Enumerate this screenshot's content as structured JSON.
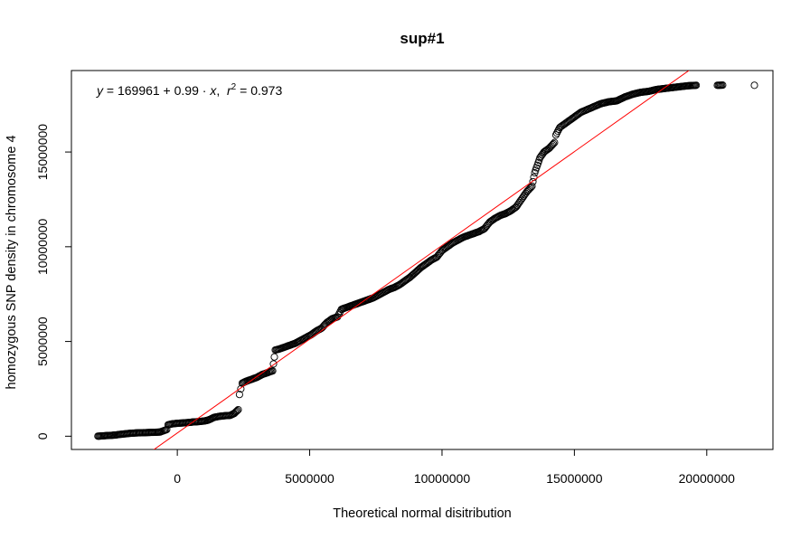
{
  "chart_data": {
    "type": "scatter",
    "title": "sup#1",
    "xlabel": "Theoretical normal disitribution",
    "ylabel": "homozygous SNP density in chromosome 4",
    "xlim": [
      -4000000,
      22500000
    ],
    "ylim": [
      -700000,
      19300000
    ],
    "x_ticks": [
      0,
      5000000,
      10000000,
      15000000,
      20000000
    ],
    "x_tick_labels": [
      "0",
      "5000000",
      "10000000",
      "15000000",
      "20000000"
    ],
    "y_ticks": [
      0,
      5000000,
      10000000,
      15000000
    ],
    "y_tick_labels": [
      "0",
      "5000000",
      "10000000",
      "15000000"
    ],
    "grid": false,
    "marker": "open-circle",
    "fit_line": {
      "intercept": 169961,
      "slope": 0.99,
      "r2": 0.973,
      "color": "#ff0000",
      "equation_label": {
        "y": "y",
        "eq1": " = 169961 + 0.99 · ",
        "x": "x",
        "comma": ",  ",
        "r": "r",
        "sup": "2",
        "eq2": " = 0.973"
      }
    },
    "series": [
      {
        "points": [
          [
            -3000000,
            0
          ],
          [
            -2700000,
            30000
          ],
          [
            -2450000,
            50000
          ],
          [
            -2350000,
            60000
          ],
          [
            -2200000,
            90000
          ],
          [
            -2000000,
            120000
          ],
          [
            -1800000,
            150000
          ],
          [
            -1600000,
            170000
          ],
          [
            -1400000,
            180000
          ],
          [
            -1200000,
            190000
          ],
          [
            -1000000,
            200000
          ],
          [
            -800000,
            210000
          ],
          [
            -650000,
            220000
          ],
          [
            -400000,
            350000
          ],
          [
            -350000,
            600000
          ],
          [
            -200000,
            650000
          ],
          [
            0,
            680000
          ],
          [
            200000,
            700000
          ],
          [
            400000,
            720000
          ],
          [
            600000,
            750000
          ],
          [
            800000,
            770000
          ],
          [
            1000000,
            800000
          ],
          [
            1150000,
            840000
          ],
          [
            1250000,
            900000
          ],
          [
            1400000,
            1000000
          ],
          [
            1600000,
            1050000
          ],
          [
            1800000,
            1080000
          ],
          [
            2000000,
            1100000
          ],
          [
            2150000,
            1200000
          ],
          [
            2300000,
            1400000
          ],
          [
            2350000,
            2200000
          ],
          [
            2400000,
            2500000
          ],
          [
            2450000,
            2800000
          ],
          [
            2600000,
            2900000
          ],
          [
            2800000,
            3000000
          ],
          [
            3000000,
            3100000
          ],
          [
            3200000,
            3250000
          ],
          [
            3400000,
            3350000
          ],
          [
            3600000,
            3450000
          ],
          [
            3700000,
            4550000
          ],
          [
            3850000,
            4600000
          ],
          [
            4050000,
            4700000
          ],
          [
            4250000,
            4800000
          ],
          [
            4450000,
            4900000
          ],
          [
            4650000,
            5050000
          ],
          [
            4850000,
            5200000
          ],
          [
            5050000,
            5350000
          ],
          [
            5250000,
            5550000
          ],
          [
            5450000,
            5700000
          ],
          [
            5650000,
            6000000
          ],
          [
            5850000,
            6200000
          ],
          [
            6050000,
            6300000
          ],
          [
            6200000,
            6700000
          ],
          [
            6400000,
            6800000
          ],
          [
            6600000,
            6900000
          ],
          [
            6800000,
            7000000
          ],
          [
            7000000,
            7100000
          ],
          [
            7200000,
            7200000
          ],
          [
            7400000,
            7300000
          ],
          [
            7600000,
            7450000
          ],
          [
            7800000,
            7600000
          ],
          [
            8000000,
            7750000
          ],
          [
            8200000,
            7850000
          ],
          [
            8400000,
            8000000
          ],
          [
            8600000,
            8200000
          ],
          [
            8800000,
            8400000
          ],
          [
            9000000,
            8650000
          ],
          [
            9200000,
            8900000
          ],
          [
            9400000,
            9100000
          ],
          [
            9600000,
            9300000
          ],
          [
            9800000,
            9450000
          ],
          [
            10000000,
            9800000
          ],
          [
            10200000,
            10000000
          ],
          [
            10400000,
            10200000
          ],
          [
            10600000,
            10350000
          ],
          [
            10800000,
            10500000
          ],
          [
            11000000,
            10600000
          ],
          [
            11200000,
            10700000
          ],
          [
            11400000,
            10800000
          ],
          [
            11600000,
            10950000
          ],
          [
            11800000,
            11300000
          ],
          [
            12000000,
            11500000
          ],
          [
            12200000,
            11650000
          ],
          [
            12400000,
            11750000
          ],
          [
            12600000,
            11900000
          ],
          [
            12800000,
            12100000
          ],
          [
            13000000,
            12500000
          ],
          [
            13200000,
            12900000
          ],
          [
            13400000,
            13200000
          ],
          [
            13500000,
            13900000
          ],
          [
            13600000,
            14300000
          ],
          [
            13700000,
            14700000
          ],
          [
            13850000,
            15000000
          ],
          [
            14050000,
            15200000
          ],
          [
            14250000,
            15500000
          ],
          [
            14300000,
            15900000
          ],
          [
            14450000,
            16300000
          ],
          [
            14650000,
            16500000
          ],
          [
            14850000,
            16700000
          ],
          [
            15050000,
            16900000
          ],
          [
            15250000,
            17100000
          ],
          [
            15500000,
            17250000
          ],
          [
            15750000,
            17400000
          ],
          [
            16000000,
            17550000
          ],
          [
            16300000,
            17650000
          ],
          [
            16600000,
            17700000
          ],
          [
            16900000,
            17900000
          ],
          [
            17200000,
            18050000
          ],
          [
            17500000,
            18150000
          ],
          [
            17800000,
            18200000
          ],
          [
            18100000,
            18300000
          ],
          [
            18400000,
            18350000
          ],
          [
            18700000,
            18400000
          ],
          [
            19000000,
            18450000
          ],
          [
            19300000,
            18500000
          ],
          [
            19600000,
            18520000
          ],
          [
            20400000,
            18520000
          ],
          [
            20600000,
            18530000
          ],
          [
            21800000,
            18520000
          ]
        ]
      }
    ]
  }
}
